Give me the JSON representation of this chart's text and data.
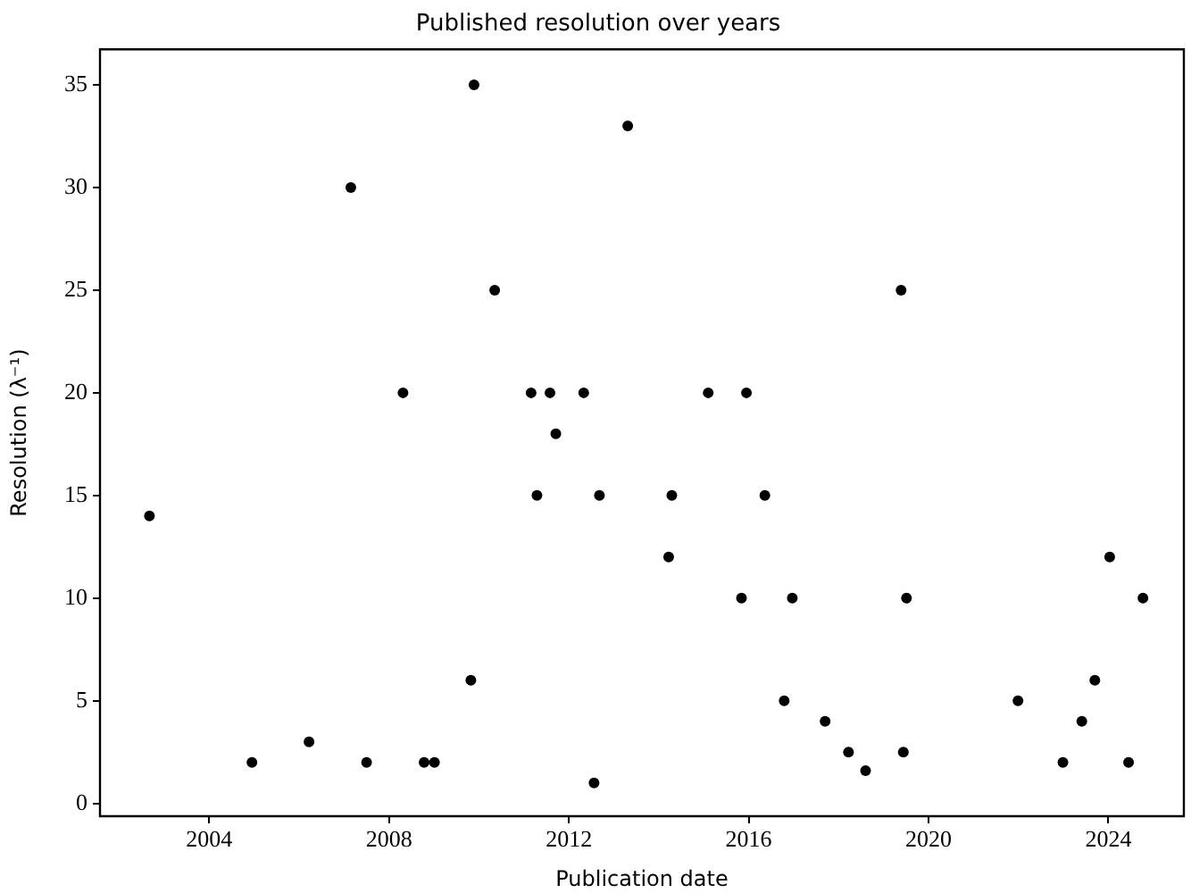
{
  "chart_data": {
    "type": "scatter",
    "title": "Published resolution over years",
    "xlabel": "Publication date",
    "ylabel": "Resolution (λ⁻¹)",
    "marker": "circle",
    "xlim": [
      2001.57,
      2025.68
    ],
    "xticks": [
      2004,
      2008,
      2012,
      2016,
      2020,
      2024
    ],
    "ylim": [
      -0.62,
      36.73
    ],
    "yticks": [
      0,
      5,
      10,
      15,
      20,
      25,
      30,
      35
    ],
    "series": [
      {
        "color": "#000000",
        "x": [
          2002.67,
          2004.95,
          2006.22,
          2007.15,
          2007.5,
          2008.31,
          2008.78,
          2009.01,
          2009.82,
          2009.89,
          2010.35,
          2011.16,
          2011.29,
          2011.58,
          2011.71,
          2012.33,
          2012.56,
          2012.68,
          2013.31,
          2014.22,
          2014.29,
          2015.1,
          2015.84,
          2015.95,
          2016.36,
          2016.79,
          2016.97,
          2017.7,
          2018.22,
          2018.6,
          2019.39,
          2019.44,
          2019.51,
          2021.99,
          2022.99,
          2023.41,
          2023.7,
          2024.03,
          2024.45,
          2024.77
        ],
        "values": [
          14,
          2,
          3,
          30,
          2,
          20,
          2,
          2,
          6,
          35,
          25,
          20,
          15,
          20,
          18,
          20,
          1,
          15,
          33,
          12,
          15,
          20,
          10,
          20,
          15,
          5,
          10,
          4,
          2.5,
          1.6,
          25,
          2.5,
          10,
          5,
          2,
          4,
          6,
          12,
          2,
          10
        ]
      }
    ]
  }
}
